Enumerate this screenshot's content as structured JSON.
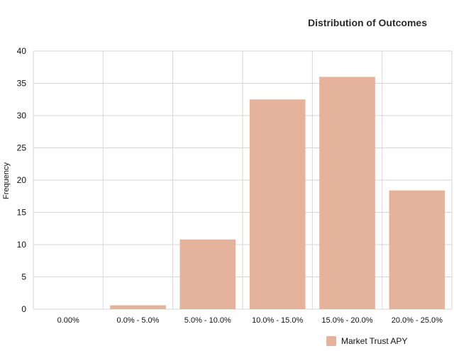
{
  "chart_data": {
    "type": "bar",
    "title": "Distribution of Outcomes",
    "xlabel": "",
    "ylabel": "Frequency",
    "categories": [
      "0.00%",
      "0.0% - 5.0%",
      "5.0% - 10.0%",
      "10.0% - 15.0%",
      "15.0% - 20.0%",
      "20.0% - 25.0%"
    ],
    "series": [
      {
        "name": "Market Trust APY",
        "values": [
          0,
          0.6,
          10.8,
          32.5,
          36,
          18.4
        ]
      }
    ],
    "ylim": [
      0,
      40
    ],
    "yticks": [
      0,
      5,
      10,
      15,
      20,
      25,
      30,
      35,
      40
    ],
    "grid": true,
    "legend_position": "bottom-right",
    "bar_color": "#e5b39b"
  }
}
